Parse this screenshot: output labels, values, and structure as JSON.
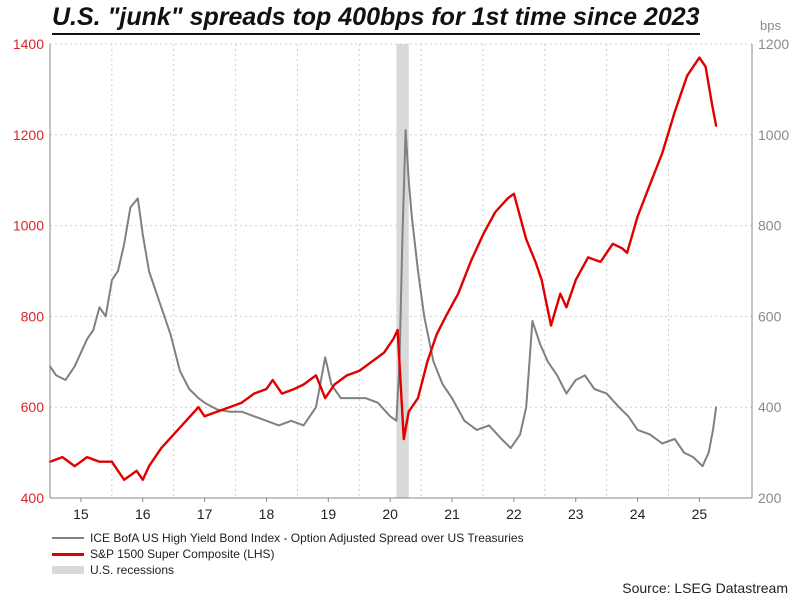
{
  "title": "U.S. \"junk\" spreads top 400bps for 1st time since 2023",
  "right_axis_unit": "bps",
  "source": "Source: LSEG Datastream",
  "colors": {
    "spread": "#808080",
    "sp1500": "#e00000",
    "recession": "#d9d9d9",
    "left_axis": "#d8262c",
    "right_axis": "#8a8a8a"
  },
  "chart_data": {
    "type": "line",
    "x_tick_labels": [
      "15",
      "16",
      "17",
      "18",
      "19",
      "20",
      "21",
      "22",
      "23",
      "24",
      "25"
    ],
    "x_tick_years": [
      2015,
      2016,
      2017,
      2018,
      2019,
      2020,
      2021,
      2022,
      2023,
      2024,
      2025
    ],
    "xlim": [
      2014.5,
      2025.85
    ],
    "left_axis": {
      "ylim": [
        400,
        1400
      ],
      "ticks": [
        400,
        600,
        800,
        1000,
        1200,
        1400
      ]
    },
    "right_axis": {
      "unit": "bps",
      "ylim": [
        200,
        1200
      ],
      "ticks": [
        200,
        400,
        600,
        800,
        1000,
        1200
      ]
    },
    "grid": true,
    "recessions": [
      {
        "label": "U.S. recessions",
        "start": 2020.1,
        "end": 2020.3
      }
    ],
    "series": [
      {
        "name": "ICE BofA US High Yield Bond Index - Option Adjusted Spread over US Treasuries",
        "axis": "right",
        "x": [
          2014.5,
          2014.6,
          2014.75,
          2014.9,
          2015.0,
          2015.1,
          2015.2,
          2015.3,
          2015.4,
          2015.5,
          2015.6,
          2015.7,
          2015.8,
          2015.92,
          2016.0,
          2016.1,
          2016.2,
          2016.3,
          2016.45,
          2016.6,
          2016.75,
          2016.9,
          2017.0,
          2017.2,
          2017.4,
          2017.6,
          2017.8,
          2018.0,
          2018.2,
          2018.4,
          2018.6,
          2018.8,
          2018.95,
          2019.05,
          2019.2,
          2019.4,
          2019.6,
          2019.8,
          2020.0,
          2020.1,
          2020.15,
          2020.2,
          2020.25,
          2020.3,
          2020.35,
          2020.45,
          2020.55,
          2020.7,
          2020.85,
          2021.0,
          2021.2,
          2021.4,
          2021.6,
          2021.8,
          2021.95,
          2022.1,
          2022.2,
          2022.3,
          2022.42,
          2022.55,
          2022.7,
          2022.85,
          2023.0,
          2023.15,
          2023.3,
          2023.5,
          2023.7,
          2023.85,
          2024.0,
          2024.2,
          2024.4,
          2024.6,
          2024.75,
          2024.9,
          2025.05,
          2025.15,
          2025.22,
          2025.27
        ],
        "values": [
          490,
          470,
          460,
          490,
          520,
          550,
          570,
          620,
          600,
          680,
          700,
          760,
          840,
          860,
          780,
          700,
          660,
          620,
          560,
          480,
          440,
          420,
          410,
          395,
          390,
          390,
          380,
          370,
          360,
          370,
          360,
          400,
          510,
          450,
          420,
          420,
          420,
          410,
          380,
          370,
          500,
          780,
          1010,
          900,
          820,
          700,
          600,
          500,
          450,
          420,
          370,
          350,
          360,
          330,
          310,
          340,
          400,
          590,
          540,
          500,
          470,
          430,
          460,
          470,
          440,
          430,
          400,
          380,
          350,
          340,
          320,
          330,
          300,
          290,
          270,
          300,
          350,
          400
        ]
      },
      {
        "name": "S&P 1500 Super Composite (LHS)",
        "axis": "left",
        "x": [
          2014.5,
          2014.7,
          2014.9,
          2015.1,
          2015.3,
          2015.5,
          2015.6,
          2015.7,
          2015.9,
          2016.0,
          2016.1,
          2016.3,
          2016.5,
          2016.7,
          2016.9,
          2017.0,
          2017.2,
          2017.4,
          2017.6,
          2017.8,
          2018.0,
          2018.1,
          2018.25,
          2018.45,
          2018.6,
          2018.8,
          2018.95,
          2019.1,
          2019.3,
          2019.5,
          2019.7,
          2019.9,
          2020.05,
          2020.12,
          2020.22,
          2020.3,
          2020.45,
          2020.6,
          2020.75,
          2020.9,
          2021.1,
          2021.3,
          2021.5,
          2021.7,
          2021.9,
          2022.0,
          2022.2,
          2022.35,
          2022.45,
          2022.6,
          2022.75,
          2022.85,
          2023.0,
          2023.2,
          2023.4,
          2023.6,
          2023.75,
          2023.83,
          2024.0,
          2024.2,
          2024.4,
          2024.6,
          2024.8,
          2025.0,
          2025.1,
          2025.2,
          2025.27
        ],
        "values": [
          480,
          490,
          470,
          490,
          480,
          480,
          460,
          440,
          460,
          440,
          470,
          510,
          540,
          570,
          600,
          580,
          590,
          600,
          610,
          630,
          640,
          660,
          630,
          640,
          650,
          670,
          620,
          650,
          670,
          680,
          700,
          720,
          750,
          770,
          530,
          590,
          620,
          700,
          760,
          800,
          850,
          920,
          980,
          1030,
          1060,
          1070,
          970,
          920,
          880,
          780,
          850,
          820,
          880,
          930,
          920,
          960,
          950,
          940,
          1020,
          1090,
          1160,
          1250,
          1330,
          1370,
          1350,
          1270,
          1220
        ]
      }
    ]
  },
  "legend": {
    "spread_label": "ICE BofA US High Yield Bond Index - Option Adjusted Spread over US Treasuries",
    "sp1500_label": "S&P 1500 Super Composite (LHS)",
    "recession_label": "U.S. recessions"
  }
}
